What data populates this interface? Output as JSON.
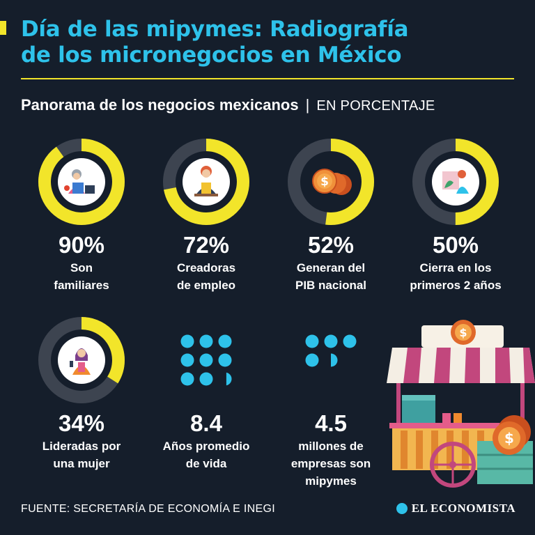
{
  "header": {
    "title_line1": "Día de las mipymes: Radiografía",
    "title_line2": "de los micronegocios en México",
    "subtitle": "Panorama de los negocios mexicanos",
    "separator": "|",
    "unit": "EN PORCENTAJE"
  },
  "colors": {
    "background": "#151e2b",
    "accent": "#2ec2ea",
    "highlight": "#f2e52a",
    "track": "#3d4450"
  },
  "chart_data": {
    "type": "donut",
    "unit": "%",
    "items": [
      {
        "category": "Son familiares",
        "value": 90,
        "display": "90%",
        "label_line1": "Son",
        "label_line2": "familiares",
        "icon": "family-business-illustration"
      },
      {
        "category": "Creadoras de empleo",
        "value": 72,
        "display": "72%",
        "label_line1": "Creadoras",
        "label_line2": "de empleo",
        "icon": "worker-illustration"
      },
      {
        "category": "Generan del PIB nacional",
        "value": 52,
        "display": "52%",
        "label_line1": "Generan del",
        "label_line2": "PIB nacional",
        "icon": "coins-illustration"
      },
      {
        "category": "Cierra en los primeros 2 años",
        "value": 50,
        "display": "50%",
        "label_line1": "Cierra en los",
        "label_line2": "primeros 2 años",
        "icon": "shop-closing-illustration"
      },
      {
        "category": "Lideradas por una mujer",
        "value": 34,
        "display": "34%",
        "label_line1": "Lideradas por",
        "label_line2": "una mujer",
        "icon": "businesswoman-illustration"
      }
    ],
    "dot_stats": [
      {
        "value": 8.4,
        "display": "8.4",
        "label_line1": "Años promedio",
        "label_line2": "de vida"
      },
      {
        "value": 4.5,
        "display": "4.5",
        "label_line1": "millones de",
        "label_line2": "empresas son",
        "label_line3": "mipymes"
      }
    ]
  },
  "footer": {
    "source": "FUENTE: SECRETARÍA DE ECONOMÍA E INEGI",
    "brand": "EL ECONOMISTA"
  }
}
